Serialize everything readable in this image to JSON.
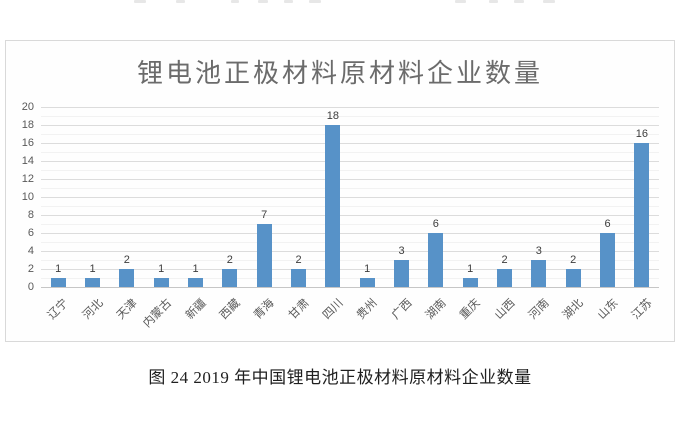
{
  "chart_data": {
    "type": "bar",
    "title": "锂电池正极材料原材料企业数量",
    "categories": [
      "辽宁",
      "河北",
      "天津",
      "内蒙古",
      "新疆",
      "西藏",
      "青海",
      "甘肃",
      "四川",
      "贵州",
      "广西",
      "湖南",
      "重庆",
      "山西",
      "河南",
      "湖北",
      "山东",
      "江苏"
    ],
    "values": [
      1,
      1,
      2,
      1,
      1,
      2,
      7,
      2,
      18,
      1,
      3,
      6,
      1,
      2,
      3,
      2,
      6,
      16
    ],
    "xlabel": "",
    "ylabel": "",
    "ylim": [
      0,
      20
    ],
    "ytick_step": 2,
    "grid": true,
    "legend": "none",
    "data_labels": true,
    "bar_color": "#5792c8"
  },
  "caption": "图 24 2019 年中国锂电池正极材料原材料企业数量",
  "colors": {
    "bar": "#5792c8",
    "title_text": "#6b6b6b",
    "axis_text": "#595959",
    "data_label_text": "#3d3d3d",
    "gridline_major": "#dcdcdc",
    "gridline_minor": "#f2f2f2",
    "panel_border": "#d9d9d9",
    "background": "#ffffff"
  }
}
